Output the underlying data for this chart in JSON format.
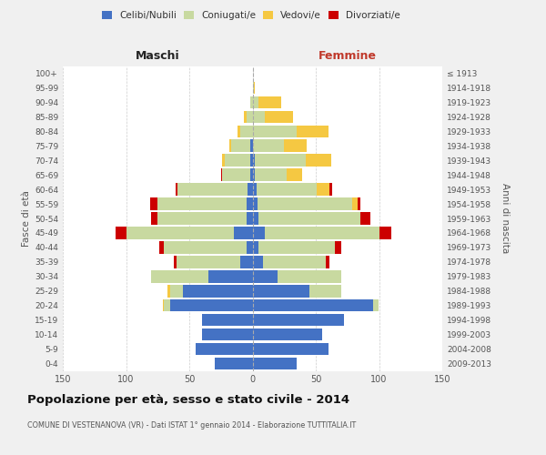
{
  "age_groups": [
    "0-4",
    "5-9",
    "10-14",
    "15-19",
    "20-24",
    "25-29",
    "30-34",
    "35-39",
    "40-44",
    "45-49",
    "50-54",
    "55-59",
    "60-64",
    "65-69",
    "70-74",
    "75-79",
    "80-84",
    "85-89",
    "90-94",
    "95-99",
    "100+"
  ],
  "birth_years": [
    "2009-2013",
    "2004-2008",
    "1999-2003",
    "1994-1998",
    "1989-1993",
    "1984-1988",
    "1979-1983",
    "1974-1978",
    "1969-1973",
    "1964-1968",
    "1959-1963",
    "1954-1958",
    "1949-1953",
    "1944-1948",
    "1939-1943",
    "1934-1938",
    "1929-1933",
    "1924-1928",
    "1919-1923",
    "1914-1918",
    "≤ 1913"
  ],
  "male": {
    "celibi": [
      30,
      45,
      40,
      40,
      65,
      55,
      35,
      10,
      5,
      15,
      5,
      5,
      4,
      2,
      2,
      2,
      0,
      0,
      0,
      0,
      0
    ],
    "coniugati": [
      0,
      0,
      0,
      0,
      5,
      10,
      45,
      50,
      65,
      85,
      70,
      70,
      55,
      22,
      20,
      15,
      10,
      5,
      2,
      0,
      0
    ],
    "vedovi": [
      0,
      0,
      0,
      0,
      1,
      2,
      0,
      0,
      0,
      0,
      0,
      0,
      0,
      0,
      2,
      1,
      2,
      2,
      0,
      0,
      0
    ],
    "divorziati": [
      0,
      0,
      0,
      0,
      0,
      0,
      0,
      2,
      4,
      8,
      5,
      6,
      2,
      1,
      0,
      0,
      0,
      0,
      0,
      0,
      0
    ]
  },
  "female": {
    "nubili": [
      35,
      60,
      55,
      72,
      95,
      45,
      20,
      8,
      5,
      10,
      5,
      4,
      3,
      2,
      2,
      0,
      0,
      0,
      0,
      0,
      0
    ],
    "coniugate": [
      0,
      0,
      0,
      0,
      5,
      25,
      50,
      50,
      60,
      90,
      80,
      75,
      48,
      25,
      40,
      25,
      35,
      10,
      5,
      1,
      0
    ],
    "vedove": [
      0,
      0,
      0,
      0,
      0,
      0,
      0,
      0,
      0,
      0,
      0,
      4,
      10,
      12,
      20,
      18,
      25,
      22,
      18,
      1,
      0
    ],
    "divorziate": [
      0,
      0,
      0,
      0,
      0,
      0,
      0,
      3,
      5,
      10,
      8,
      2,
      2,
      0,
      0,
      0,
      0,
      0,
      0,
      0,
      0
    ]
  },
  "colors": {
    "celibi_nubili": "#4472c4",
    "coniugati": "#c8d9a0",
    "vedovi": "#f5c842",
    "divorziati": "#cc0000"
  },
  "title": "Popolazione per età, sesso e stato civile - 2014",
  "subtitle": "COMUNE DI VESTENANOVA (VR) - Dati ISTAT 1° gennaio 2014 - Elaborazione TUTTITALIA.IT",
  "xlabel_left": "Maschi",
  "xlabel_right": "Femmine",
  "ylabel_left": "Fasce di età",
  "ylabel_right": "Anni di nascita",
  "xlim": 150,
  "bg_color": "#f0f0f0",
  "plot_bg": "#ffffff"
}
